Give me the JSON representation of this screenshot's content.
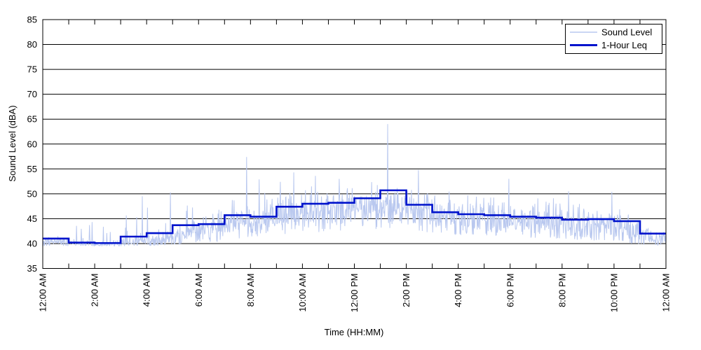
{
  "figure": {
    "background": "#ffffff"
  },
  "colors": {
    "grid": "#000000",
    "axis_border": "#000000",
    "text": "#000000",
    "sound_level_line": "#b9c8ef",
    "leq_line": "#0013cc",
    "legend_background": "#ffffff",
    "legend_border": "#000000"
  },
  "chart_data": {
    "type": "line",
    "title": "",
    "xlabel": "Time (HH:MM)",
    "ylabel": "Sound Level (dBA)",
    "ylim": [
      35,
      85
    ],
    "ytick_step": 5,
    "ytick_labels": [
      "35",
      "40",
      "45",
      "50",
      "55",
      "60",
      "65",
      "70",
      "75",
      "80",
      "85"
    ],
    "xlim_hours": [
      0,
      24
    ],
    "x_minor_tick_hours": 1,
    "x_major_tick_hours": 2,
    "xtick_labels": [
      "12:00 AM",
      "2:00 AM",
      "4:00 AM",
      "6:00 AM",
      "8:00 AM",
      "10:00 AM",
      "12:00 PM",
      "2:00 PM",
      "4:00 PM",
      "6:00 PM",
      "8:00 PM",
      "10:00 PM",
      "12:00 AM"
    ],
    "grid": "horizontal-solid",
    "legend": {
      "position": "top-right",
      "entries": [
        {
          "label": "Sound Level",
          "color": "#b9c8ef",
          "line_width": 1
        },
        {
          "label": "1-Hour Leq",
          "color": "#0013cc",
          "line_width": 3
        }
      ]
    },
    "series": [
      {
        "name": "1-Hour Leq",
        "type": "step",
        "units": "dBA",
        "hour_start": [
          0,
          1,
          2,
          3,
          4,
          5,
          6,
          7,
          8,
          9,
          10,
          11,
          12,
          13,
          14,
          15,
          16,
          17,
          18,
          19,
          20,
          21,
          22,
          23
        ],
        "values": [
          41.0,
          40.2,
          40.1,
          41.4,
          42.1,
          43.7,
          43.9,
          45.7,
          45.4,
          47.4,
          48.0,
          48.2,
          49.1,
          50.7,
          47.8,
          46.3,
          45.9,
          45.7,
          45.4,
          45.2,
          44.8,
          44.9,
          44.5,
          42.0
        ]
      },
      {
        "name": "Sound Level",
        "type": "noisy-line",
        "units": "dBA",
        "sample_interval_minutes": 1,
        "seed": 20,
        "hourly_base": [
          40.3,
          40.0,
          39.9,
          40.3,
          40.6,
          41.8,
          43.0,
          43.9,
          44.5,
          45.5,
          46.0,
          46.4,
          46.8,
          47.0,
          46.0,
          45.2,
          44.8,
          44.6,
          44.3,
          44.1,
          43.6,
          43.5,
          43.1,
          40.9
        ],
        "hourly_spread": [
          0.55,
          0.45,
          0.3,
          0.55,
          0.7,
          1.1,
          1.4,
          1.55,
          1.7,
          1.9,
          2.0,
          2.0,
          2.0,
          2.05,
          1.95,
          1.8,
          1.8,
          1.8,
          1.75,
          1.7,
          1.7,
          1.7,
          1.6,
          0.9
        ],
        "hourly_floor": [
          39.5,
          39.5,
          39.5,
          39.5,
          39.6,
          39.8,
          40.3,
          40.9,
          41.4,
          42.0,
          42.2,
          42.5,
          42.8,
          43.0,
          42.4,
          41.9,
          41.6,
          41.5,
          41.2,
          41.1,
          40.7,
          40.5,
          40.0,
          39.6
        ],
        "hourly_spike_rate": [
          0.05,
          0.04,
          0.02,
          0.05,
          0.06,
          0.07,
          0.07,
          0.06,
          0.07,
          0.07,
          0.07,
          0.06,
          0.06,
          0.06,
          0.06,
          0.05,
          0.06,
          0.06,
          0.06,
          0.05,
          0.06,
          0.06,
          0.05,
          0.04
        ],
        "hourly_spike_max": [
          45.8,
          44.8,
          44.0,
          47.0,
          48.5,
          49.5,
          49.8,
          50.5,
          51.5,
          52.5,
          52.5,
          52.5,
          52.5,
          53.0,
          52.0,
          50.5,
          50.3,
          51.0,
          50.0,
          49.5,
          50.0,
          50.0,
          47.5,
          45.8
        ],
        "notable_peaks": [
          {
            "time": "03:50",
            "value": 49.5
          },
          {
            "time": "04:55",
            "value": 50.3
          },
          {
            "time": "07:51",
            "value": 57.4
          },
          {
            "time": "08:20",
            "value": 52.9
          },
          {
            "time": "09:40",
            "value": 54.3
          },
          {
            "time": "10:30",
            "value": 53.6
          },
          {
            "time": "11:25",
            "value": 53.0
          },
          {
            "time": "13:17",
            "value": 64.0
          },
          {
            "time": "14:28",
            "value": 54.8
          },
          {
            "time": "17:57",
            "value": 53.0
          },
          {
            "time": "20:15",
            "value": 50.5
          },
          {
            "time": "21:55",
            "value": 50.4
          }
        ]
      }
    ]
  }
}
